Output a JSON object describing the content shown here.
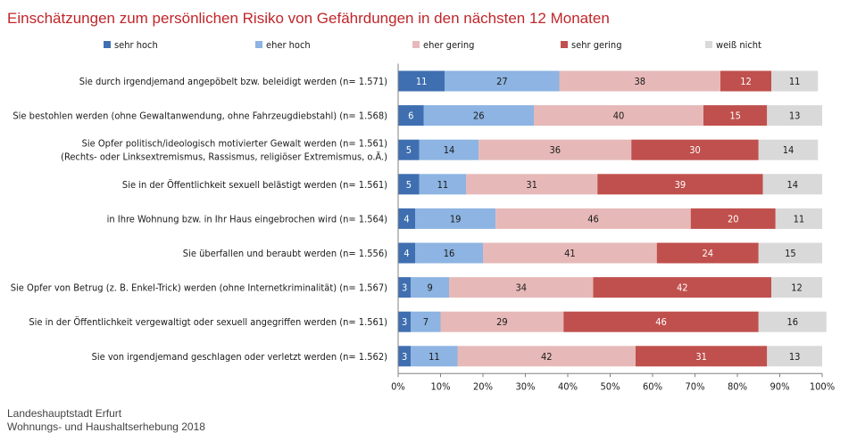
{
  "chart_data": {
    "type": "bar",
    "orientation": "horizontal",
    "stacked": true,
    "title": "Einschätzungen zum persönlichen Risiko von Gefährdungen in den nächsten 12 Monaten",
    "categories": [
      [
        "Sie durch irgendjemand angepöbelt bzw. beleidigt werden (n= 1.571)"
      ],
      [
        "Sie bestohlen werden (ohne Gewaltanwendung, ohne Fahrzeugdiebstahl) (n= 1.568)"
      ],
      [
        "Sie Opfer politisch/ideologisch motivierter Gewalt werden (n= 1.561)",
        "(Rechts- oder Linksextremismus, Rassismus, religiöser Extremismus, o.Ä.)"
      ],
      [
        "Sie in der Öffentlichkeit sexuell belästigt werden (n= 1.561)"
      ],
      [
        "in Ihre Wohnung bzw. in Ihr Haus eingebrochen wird (n= 1.564)"
      ],
      [
        "Sie überfallen und beraubt werden (n= 1.556)"
      ],
      [
        "Sie Opfer von Betrug (z. B. Enkel-Trick) werden (ohne Internetkriminalität) (n= 1.567)"
      ],
      [
        "Sie in der Öffentlichkeit vergewaltigt oder sexuell angegriffen werden (n= 1.561)"
      ],
      [
        "Sie von irgendjemand geschlagen oder verletzt werden (n= 1.562)"
      ]
    ],
    "series": [
      {
        "name": "sehr hoch",
        "color": "#3f6fb0",
        "text_color": "#ffffff",
        "values": [
          11,
          6,
          5,
          5,
          4,
          4,
          3,
          3,
          3
        ]
      },
      {
        "name": "eher hoch",
        "color": "#8db4e2",
        "text_color": "#1a1a1a",
        "values": [
          27,
          26,
          14,
          11,
          19,
          16,
          9,
          7,
          11
        ]
      },
      {
        "name": "eher gering",
        "color": "#e6b9b8",
        "text_color": "#1a1a1a",
        "values": [
          38,
          40,
          36,
          31,
          46,
          41,
          34,
          29,
          42
        ]
      },
      {
        "name": "sehr gering",
        "color": "#c0504d",
        "text_color": "#ffffff",
        "values": [
          12,
          15,
          30,
          39,
          20,
          24,
          42,
          46,
          31
        ]
      },
      {
        "name": "weiß nicht",
        "color": "#d9d9d9",
        "text_color": "#1a1a1a",
        "values": [
          11,
          13,
          14,
          14,
          11,
          15,
          12,
          16,
          13
        ]
      }
    ],
    "x_ticks": [
      "0%",
      "10%",
      "20%",
      "30%",
      "40%",
      "50%",
      "60%",
      "70%",
      "80%",
      "90%",
      "100%"
    ],
    "xlim": [
      0,
      100
    ],
    "grid": false,
    "legend_position": "top"
  },
  "source": {
    "line1": "Landeshauptstadt Erfurt",
    "line2": "Wohnungs- und Haushaltserhebung 2018"
  }
}
